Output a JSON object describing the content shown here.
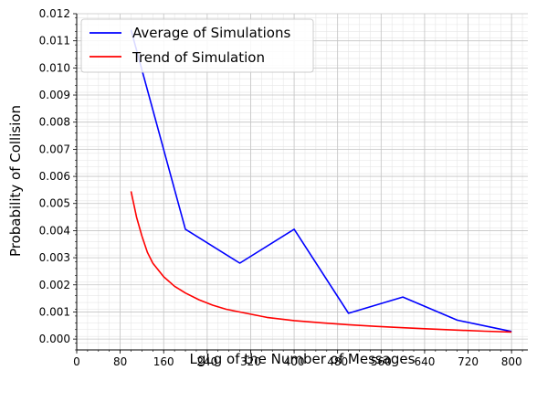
{
  "chart_data": {
    "type": "line",
    "title": "",
    "xlabel": "LgLg of the Number of Messages",
    "ylabel": "Probability of Collision",
    "xlim": [
      0,
      830
    ],
    "ylim": [
      -0.0004,
      0.012
    ],
    "x_ticks": [
      0,
      80,
      160,
      240,
      320,
      400,
      480,
      560,
      640,
      720,
      800
    ],
    "y_ticks": [
      0.0,
      0.001,
      0.002,
      0.003,
      0.004,
      0.005,
      0.006,
      0.007,
      0.008,
      0.009,
      0.01,
      0.011,
      0.012
    ],
    "grid": true,
    "legend_position": "top-left",
    "series": [
      {
        "name": "Average of Simulations",
        "color": "#0000ff",
        "x": [
          100,
          200,
          300,
          400,
          500,
          600,
          700,
          800
        ],
        "y": [
          0.0114,
          0.00405,
          0.0028,
          0.00405,
          0.00095,
          0.00155,
          0.0007,
          0.00028
        ]
      },
      {
        "name": "Trend of Simulation",
        "color": "#ff0000",
        "x": [
          100,
          110,
          120,
          130,
          140,
          150,
          160,
          180,
          200,
          225,
          250,
          275,
          300,
          350,
          400,
          450,
          500,
          550,
          600,
          650,
          700,
          750,
          800
        ],
        "y": [
          0.00545,
          0.0045,
          0.0038,
          0.0032,
          0.0028,
          0.00255,
          0.0023,
          0.00195,
          0.0017,
          0.00145,
          0.00125,
          0.0011,
          0.001,
          0.0008,
          0.00068,
          0.0006,
          0.00053,
          0.00047,
          0.00042,
          0.00037,
          0.00033,
          0.00029,
          0.00026
        ]
      }
    ]
  }
}
